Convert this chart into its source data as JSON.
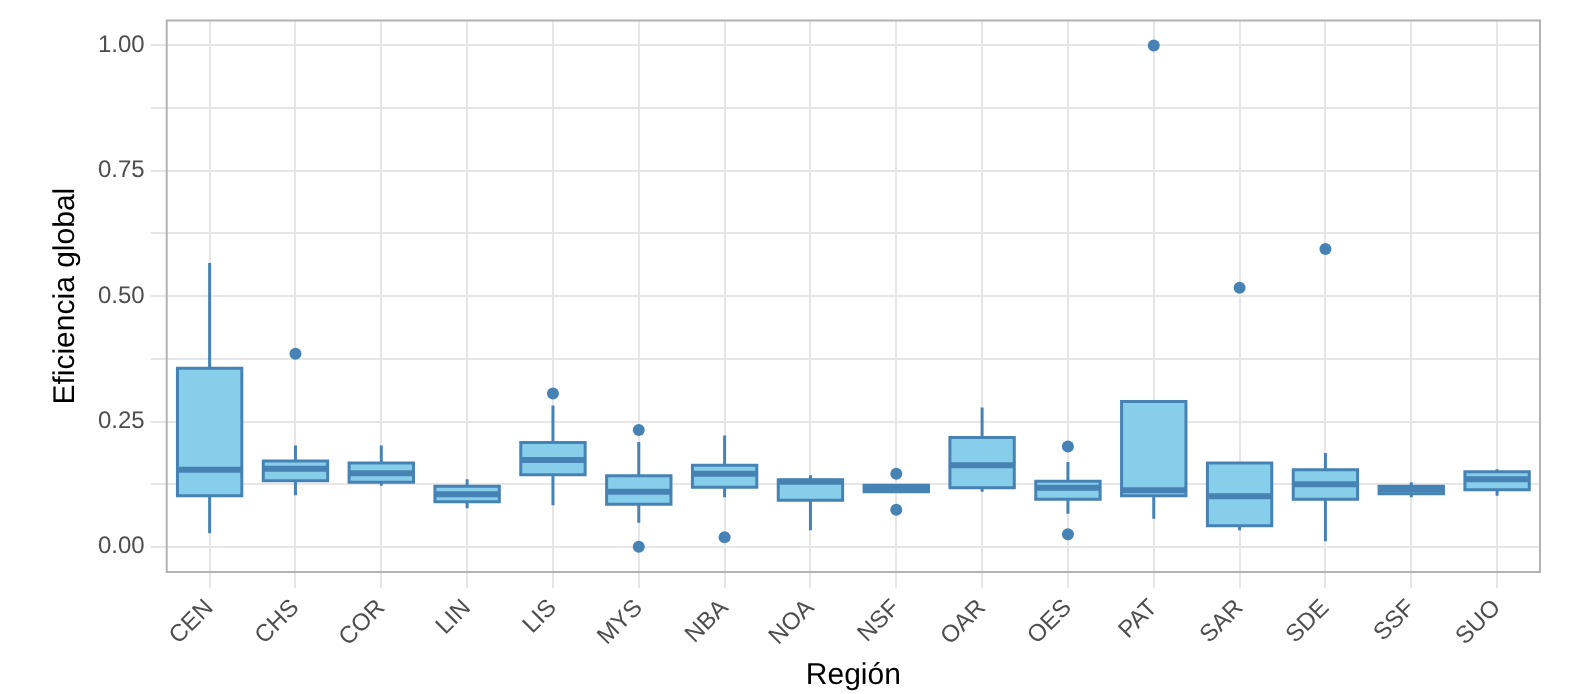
{
  "chart_data": {
    "type": "box",
    "xlabel": "Región",
    "ylabel": "Eficiencia global",
    "categories": [
      "CEN",
      "CHS",
      "COR",
      "LIN",
      "LIS",
      "MYS",
      "NBA",
      "NOA",
      "NSF",
      "OAR",
      "OES",
      "PAT",
      "SAR",
      "SDE",
      "SSF",
      "SUO"
    ],
    "color": "#4682b4",
    "boxes": [
      {
        "low": 0.027,
        "q1": 0.102,
        "median": 0.154,
        "q3": 0.356,
        "high": 0.566
      },
      {
        "low": 0.103,
        "q1": 0.132,
        "median": 0.156,
        "q3": 0.171,
        "high": 0.202,
        "outliers": [
          0.385
        ]
      },
      {
        "low": 0.122,
        "q1": 0.129,
        "median": 0.147,
        "q3": 0.167,
        "high": 0.202
      },
      {
        "low": 0.077,
        "q1": 0.09,
        "median": 0.105,
        "q3": 0.121,
        "high": 0.135
      },
      {
        "low": 0.083,
        "q1": 0.144,
        "median": 0.173,
        "q3": 0.208,
        "high": 0.282,
        "outliers": [
          0.306
        ]
      },
      {
        "low": 0.048,
        "q1": 0.085,
        "median": 0.11,
        "q3": 0.142,
        "high": 0.209,
        "outliers": [
          0.233,
          0
        ]
      },
      {
        "low": 0.099,
        "q1": 0.119,
        "median": 0.146,
        "q3": 0.163,
        "high": 0.222,
        "outliers": [
          0.019
        ]
      },
      {
        "low": 0.033,
        "q1": 0.093,
        "median": 0.13,
        "q3": 0.134,
        "high": 0.143
      },
      {
        "low": 0.108,
        "q1": 0.11,
        "median": 0.118,
        "q3": 0.123,
        "high": 0.125,
        "outliers": [
          0.146,
          0.074
        ]
      },
      {
        "low": 0.11,
        "q1": 0.118,
        "median": 0.163,
        "q3": 0.218,
        "high": 0.278
      },
      {
        "low": 0.066,
        "q1": 0.095,
        "median": 0.118,
        "q3": 0.131,
        "high": 0.169,
        "outliers": [
          0.2,
          0.025
        ]
      },
      {
        "low": 0.056,
        "q1": 0.102,
        "median": 0.113,
        "q3": 0.29,
        "high": 0.29,
        "outliers": [
          1.0
        ]
      },
      {
        "low": 0.033,
        "q1": 0.042,
        "median": 0.101,
        "q3": 0.167,
        "high": 0.167,
        "outliers": [
          0.517
        ]
      },
      {
        "low": 0.011,
        "q1": 0.095,
        "median": 0.125,
        "q3": 0.154,
        "high": 0.187,
        "outliers": [
          0.594
        ]
      },
      {
        "low": 0.099,
        "q1": 0.106,
        "median": 0.115,
        "q3": 0.121,
        "high": 0.129
      },
      {
        "low": 0.102,
        "q1": 0.114,
        "median": 0.135,
        "q3": 0.15,
        "high": 0.155
      }
    ],
    "ylim": [
      -0.05,
      1.05
    ],
    "yticks": [
      {
        "value": 0,
        "label": "0.00"
      },
      {
        "value": 0.125,
        "label": null
      },
      {
        "value": 0.25,
        "label": "0.25"
      },
      {
        "value": 0.375,
        "label": null
      },
      {
        "value": 0.5,
        "label": "0.50"
      },
      {
        "value": 0.625,
        "label": null
      },
      {
        "value": 0.75,
        "label": "0.75"
      },
      {
        "value": 0.875,
        "label": null
      },
      {
        "value": 1,
        "label": "1.00"
      }
    ],
    "grid": true
  }
}
